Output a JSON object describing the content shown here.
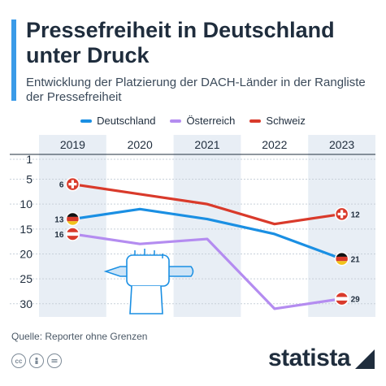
{
  "title": "Pressefreiheit in Deutschland unter Druck",
  "subtitle": "Entwicklung der Platzierung der DACH-Länder in der Rangliste der Pressefreiheit",
  "source": "Quelle: Reporter ohne Grenzen",
  "brand": "statista",
  "colors": {
    "deutschland": "#1a8fe3",
    "oesterreich": "#b48cf0",
    "schweiz": "#d93a2b",
    "accent": "#3a9be8"
  },
  "chart_data": {
    "type": "line",
    "x": [
      "2019",
      "2020",
      "2021",
      "2022",
      "2023"
    ],
    "y_ticks": [
      "1",
      "5",
      "10",
      "15",
      "20",
      "25",
      "30"
    ],
    "ylim": [
      1,
      32
    ],
    "y_inverted": true,
    "legend_position": "top",
    "series": [
      {
        "name": "Deutschland",
        "values": [
          13,
          11,
          13,
          16,
          21
        ],
        "start_label": "13",
        "end_label": "21",
        "color": "#1a8fe3"
      },
      {
        "name": "Österreich",
        "values": [
          16,
          18,
          17,
          31,
          29
        ],
        "start_label": "16",
        "end_label": "29",
        "color": "#b48cf0"
      },
      {
        "name": "Schweiz",
        "values": [
          6,
          8,
          10,
          14,
          12
        ],
        "start_label": "6",
        "end_label": "12",
        "color": "#d93a2b"
      }
    ]
  }
}
